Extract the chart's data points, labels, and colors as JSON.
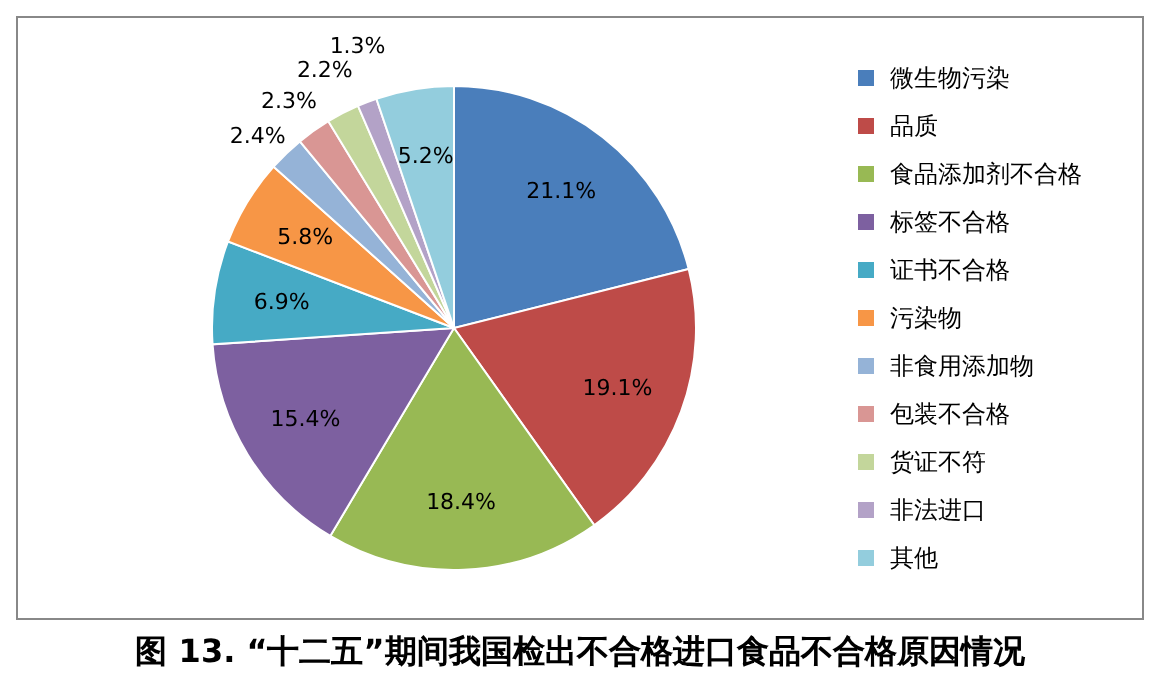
{
  "chart_data": {
    "type": "pie",
    "title": "图 13. “十二五”期间我国检出不合格进口食品不合格原因情况",
    "categories": [
      "微生物污染",
      "品质",
      "食品添加剂不合格",
      "标签不合格",
      "证书不合格",
      "污染物",
      "非食用添加物",
      "包装不合格",
      "货证不符",
      "非法进口",
      "其他"
    ],
    "values": [
      21.1,
      19.1,
      18.4,
      15.4,
      6.9,
      5.8,
      2.4,
      2.3,
      2.2,
      1.3,
      5.2
    ],
    "colors": [
      "#4a7ebb",
      "#be4b48",
      "#98b954",
      "#7d60a0",
      "#46aac5",
      "#f79646",
      "#95b3d7",
      "#d99694",
      "#c3d69b",
      "#b3a2c7",
      "#93cddd"
    ],
    "value_labels": [
      "21.1%",
      "19.1%",
      "18.4%",
      "15.4%",
      "6.9%",
      "5.8%",
      "2.4%",
      "2.3%",
      "2.2%",
      "1.3%",
      "5.2%"
    ],
    "legend": "right"
  }
}
